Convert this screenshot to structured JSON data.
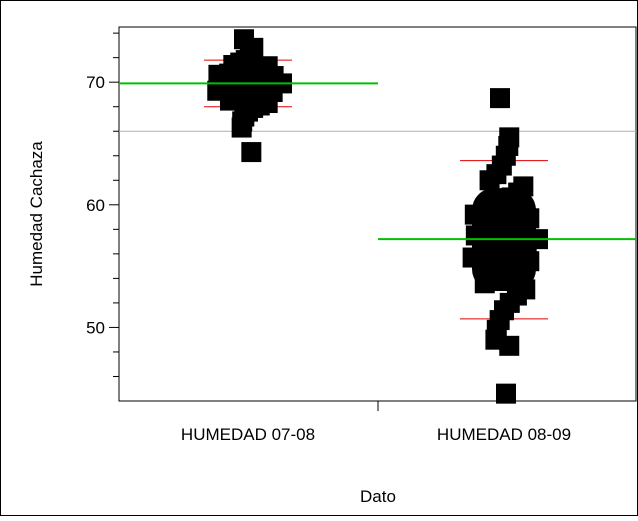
{
  "chart_data": {
    "type": "scatter",
    "title": "",
    "xlabel": "Dato",
    "ylabel": "Humedad Cachaza",
    "categories": [
      "HUMEDAD 07-08",
      "HUMEDAD 08-09"
    ],
    "ylim": [
      44.0,
      74.5
    ],
    "yticks": [
      50,
      60,
      70
    ],
    "grand_mean": 66.0,
    "groups": [
      {
        "name": "HUMEDAD 07-08",
        "mean": 69.9,
        "ci": [
          69.5,
          70.3
        ],
        "sd_range": [
          68.0,
          71.8
        ],
        "points": [
          73.5,
          72.8,
          72.2,
          72.0,
          71.8,
          71.6,
          71.4,
          71.3,
          71.1,
          71.0,
          70.9,
          70.8,
          70.7,
          70.6,
          70.5,
          70.4,
          70.3,
          70.2,
          70.1,
          70.0,
          69.9,
          69.8,
          69.7,
          69.6,
          69.5,
          69.4,
          69.3,
          69.2,
          69.1,
          69.0,
          68.9,
          68.7,
          68.5,
          68.3,
          68.1,
          67.9,
          67.6,
          67.2,
          66.8,
          66.3,
          64.3
        ]
      },
      {
        "name": "HUMEDAD 08-09",
        "mean": 57.2,
        "ci": [
          55.5,
          58.9
        ],
        "sd_range": [
          50.7,
          63.6
        ],
        "points": [
          68.7,
          65.5,
          64.8,
          64.0,
          63.2,
          62.5,
          62.0,
          61.5,
          61.0,
          60.6,
          60.2,
          59.8,
          59.5,
          59.2,
          58.9,
          58.6,
          58.3,
          58.0,
          57.7,
          57.5,
          57.2,
          57.0,
          56.8,
          56.5,
          56.2,
          56.0,
          55.7,
          55.4,
          55.1,
          54.8,
          54.4,
          54.0,
          53.6,
          53.1,
          52.6,
          52.0,
          51.4,
          50.6,
          49.8,
          49.0,
          48.5,
          44.6
        ]
      }
    ],
    "colors": {
      "points": "#000000",
      "mean_line": "#00c000",
      "diamond": "#e00000",
      "grand_mean_line": "#b0b0b0",
      "axis": "#000000"
    }
  }
}
